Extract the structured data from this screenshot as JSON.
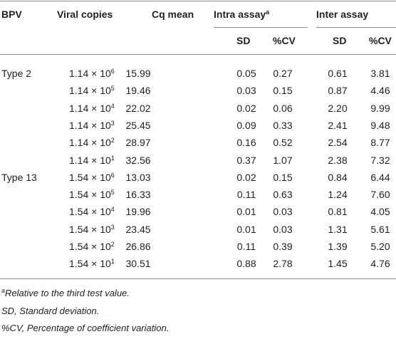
{
  "table": {
    "header": {
      "bpv": "BPV",
      "viral_copies": "Viral copies",
      "cq_mean": "Cq mean",
      "intra": {
        "text": "Intra assay",
        "sup": "a"
      },
      "inter": "Inter assay",
      "sub": [
        "SD",
        "%CV",
        "SD",
        "%CV"
      ]
    },
    "rows": [
      {
        "bpv": "Type 2",
        "copies": {
          "base": "1.14 × 10",
          "exp": "6"
        },
        "cells": [
          "15.99",
          "0.05",
          "0.27",
          "0.61",
          "3.81"
        ]
      },
      {
        "copies": {
          "base": "1.14 × 10",
          "exp": "5"
        },
        "cells": [
          "19.46",
          "0.03",
          "0.15",
          "0.87",
          "4.46"
        ]
      },
      {
        "copies": {
          "base": "1.14 × 10",
          "exp": "4"
        },
        "cells": [
          "22.02",
          "0.02",
          "0.06",
          "2.20",
          "9.99"
        ]
      },
      {
        "copies": {
          "base": "1.14 × 10",
          "exp": "3"
        },
        "cells": [
          "25.45",
          "0.09",
          "0.33",
          "2.41",
          "9.48"
        ]
      },
      {
        "copies": {
          "base": "1.14 × 10",
          "exp": "2"
        },
        "cells": [
          "28.97",
          "0.16",
          "0.52",
          "2.54",
          "8.77"
        ]
      },
      {
        "copies": {
          "base": "1.14 × 10",
          "exp": "1"
        },
        "cells": [
          "32.56",
          "0.37",
          "1.07",
          "2.38",
          "7.32"
        ]
      },
      {
        "bpv": "Type 13",
        "copies": {
          "base": "1.54 × 10",
          "exp": "6"
        },
        "cells": [
          "13.03",
          "0.02",
          "0.15",
          "0.84",
          "6.44"
        ]
      },
      {
        "copies": {
          "base": "1.54 × 10",
          "exp": "5"
        },
        "cells": [
          "16.33",
          "0.11",
          "0.63",
          "1.24",
          "7.60"
        ]
      },
      {
        "copies": {
          "base": "1.54 × 10",
          "exp": "4"
        },
        "cells": [
          "19.96",
          "0.01",
          "0.03",
          "0.81",
          "4.05"
        ]
      },
      {
        "copies": {
          "base": "1.54 × 10",
          "exp": "3"
        },
        "cells": [
          "23.45",
          "0.01",
          "0.03",
          "1.31",
          "5.61"
        ]
      },
      {
        "copies": {
          "base": "1.54 × 10",
          "exp": "2"
        },
        "cells": [
          "26.86",
          "0.11",
          "0.39",
          "1.39",
          "5.20"
        ]
      },
      {
        "copies": {
          "base": "1.54 × 10",
          "exp": "1"
        },
        "cells": [
          "30.51",
          "0.88",
          "2.78",
          "1.45",
          "4.76"
        ]
      }
    ],
    "footnotes": [
      {
        "sup": "a",
        "text": "Relative to the third test value."
      },
      {
        "text": "SD, Standard deviation."
      },
      {
        "text": "%CV, Percentage of coefficient variation."
      }
    ]
  }
}
